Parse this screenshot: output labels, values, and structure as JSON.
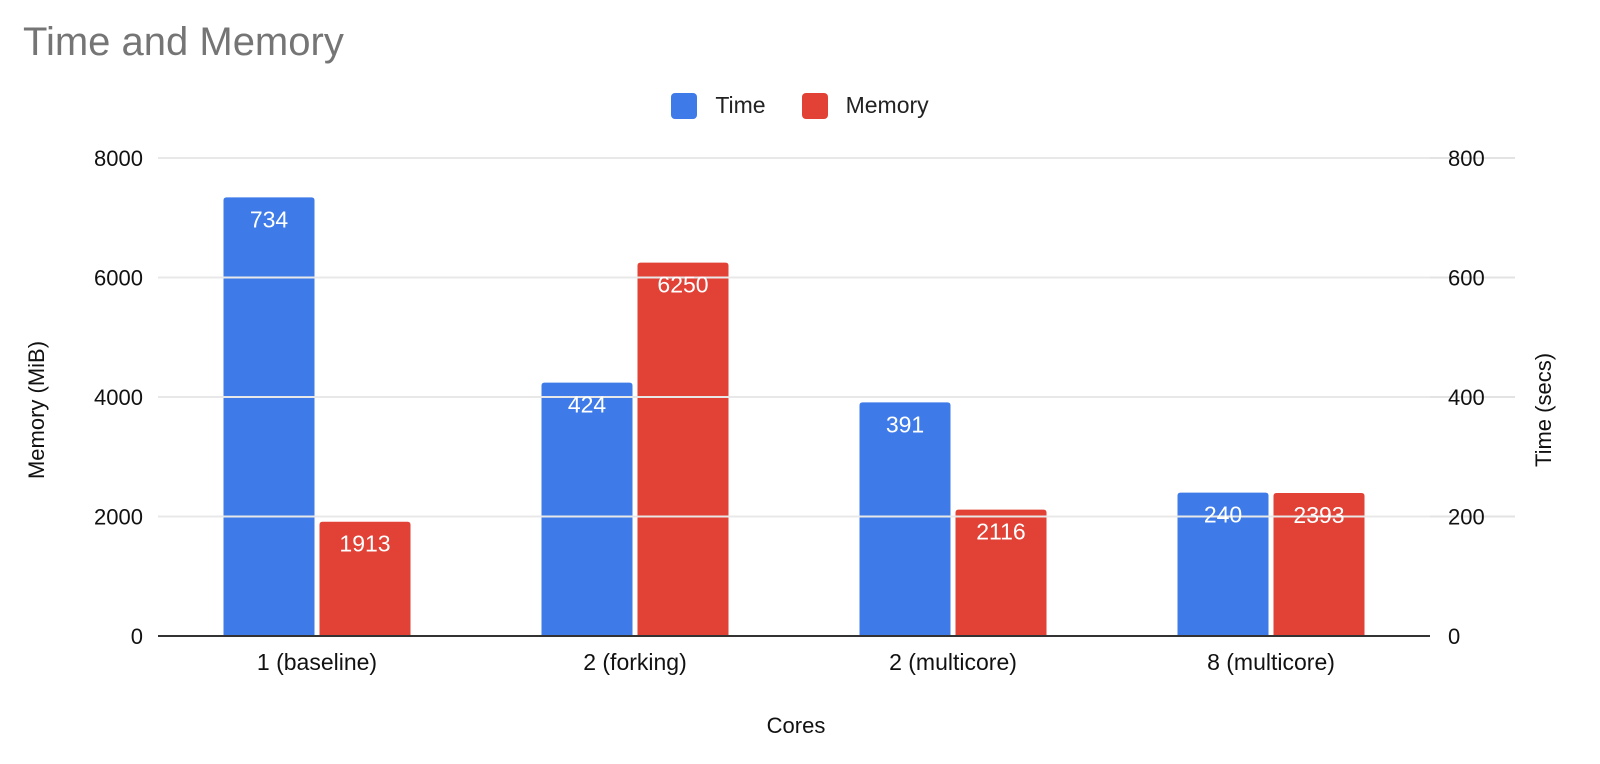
{
  "chart_data": {
    "type": "bar",
    "title": "Time and Memory",
    "categories": [
      "1 (baseline)",
      "2 (forking)",
      "2 (multicore)",
      "8 (multicore)"
    ],
    "series": [
      {
        "name": "Time",
        "axis": "right",
        "color": "#3e7be9",
        "values": [
          734,
          424,
          391,
          240
        ]
      },
      {
        "name": "Memory",
        "axis": "left",
        "color": "#e24135",
        "values": [
          1913,
          6250,
          2116,
          2393
        ]
      }
    ],
    "xlabel": "Cores",
    "ylabel": "Memory (MiB)",
    "ylabel_right": "Time (secs)",
    "ylim": [
      0,
      8000
    ],
    "ylim_right": [
      0,
      800
    ],
    "yticks": [
      0,
      2000,
      4000,
      6000,
      8000
    ],
    "yticks_right": [
      0,
      200,
      400,
      600,
      800
    ],
    "grid": true,
    "legend_position": "top",
    "data_labels": true
  },
  "header": {
    "title": "Time and Memory"
  },
  "legend": [
    {
      "label": "Time",
      "color": "#3e7be9"
    },
    {
      "label": "Memory",
      "color": "#e24135"
    }
  ]
}
